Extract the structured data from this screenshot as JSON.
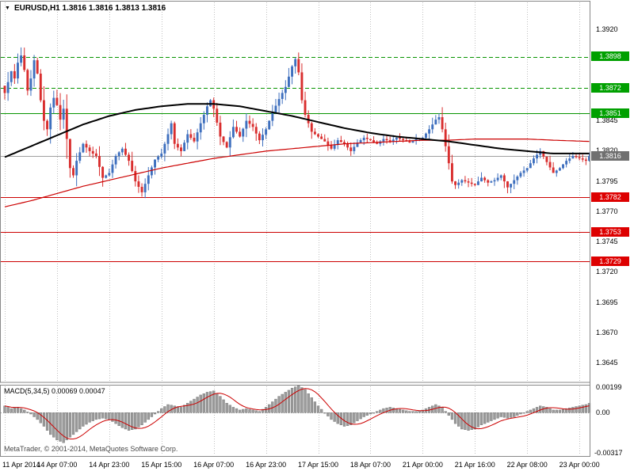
{
  "window": {
    "symbol_title": "EURUSD,H1  1.3816 1.3816 1.3813 1.3816"
  },
  "indicator": {
    "name": "MACD",
    "params": "5,34,5",
    "value_main": "0.00069",
    "value_signal": "0.00047",
    "label_full": "MACD(5,34,5) 0.00069 0.00047"
  },
  "watermark": "MetaTrader, © 2001-2014, MetaQuotes Software Corp.",
  "price_axis": {
    "ticks": [
      {
        "label": "1.3920",
        "price": 1.392
      },
      {
        "label": "1.3845",
        "price": 1.3845
      },
      {
        "label": "1.3820",
        "price": 1.382
      },
      {
        "label": "1.3795",
        "price": 1.3795
      },
      {
        "label": "1.3770",
        "price": 1.377
      },
      {
        "label": "1.3745",
        "price": 1.3745
      },
      {
        "label": "1.3720",
        "price": 1.372
      },
      {
        "label": "1.3695",
        "price": 1.3695
      },
      {
        "label": "1.3670",
        "price": 1.367
      },
      {
        "label": "1.3645",
        "price": 1.3645
      }
    ],
    "flags": [
      {
        "label": "1.3898",
        "price": 1.3898,
        "color": "#00a000"
      },
      {
        "label": "1.3872",
        "price": 1.3872,
        "color": "#00a000"
      },
      {
        "label": "1.3851",
        "price": 1.3851,
        "color": "#00a000"
      },
      {
        "label": "1.3782",
        "price": 1.3782,
        "color": "#dd0000"
      },
      {
        "label": "1.3753",
        "price": 1.3753,
        "color": "#dd0000"
      },
      {
        "label": "1.3729",
        "price": 1.3729,
        "color": "#dd0000"
      }
    ],
    "current": {
      "label": "1.3816",
      "price": 1.3816,
      "color": "#707070"
    }
  },
  "time_axis": {
    "labels": [
      "11 Apr 2014",
      "14 Apr 07:00",
      "14 Apr 23:00",
      "15 Apr 15:00",
      "16 Apr 07:00",
      "16 Apr 23:00",
      "17 Apr 15:00",
      "18 Apr 07:00",
      "21 Apr 00:00",
      "21 Apr 16:00",
      "22 Apr 08:00",
      "23 Apr 00:00"
    ]
  },
  "chart_data": {
    "type": "candlestick+macd",
    "symbol": "EURUSD",
    "timeframe": "H1",
    "last_quote": {
      "open": 1.3816,
      "high": 1.3816,
      "low": 1.3813,
      "close": 1.3816
    },
    "bars_total": 180,
    "bars_per_time_label": 16,
    "price_ylim": [
      1.3629,
      1.3938
    ],
    "price_tick_step": 0.0025,
    "close_path_anchors": [
      [
        0,
        1.3868
      ],
      [
        2,
        1.3886
      ],
      [
        3,
        1.388
      ],
      [
        4,
        1.3893
      ],
      [
        5,
        1.3899
      ],
      [
        6,
        1.3887
      ],
      [
        7,
        1.387
      ],
      [
        8,
        1.388
      ],
      [
        9,
        1.3895
      ],
      [
        10,
        1.3884
      ],
      [
        11,
        1.3862
      ],
      [
        12,
        1.3845
      ],
      [
        13,
        1.3838
      ],
      [
        14,
        1.3856
      ],
      [
        15,
        1.3864
      ],
      [
        16,
        1.3858
      ],
      [
        17,
        1.3846
      ],
      [
        18,
        1.3855
      ],
      [
        19,
        1.383
      ],
      [
        20,
        1.3806
      ],
      [
        21,
        1.38
      ],
      [
        22,
        1.3812
      ],
      [
        24,
        1.3826
      ],
      [
        26,
        1.382
      ],
      [
        28,
        1.3816
      ],
      [
        30,
        1.3798
      ],
      [
        32,
        1.3802
      ],
      [
        34,
        1.3816
      ],
      [
        36,
        1.3822
      ],
      [
        38,
        1.3812
      ],
      [
        40,
        1.3795
      ],
      [
        42,
        1.3786
      ],
      [
        44,
        1.38
      ],
      [
        46,
        1.3813
      ],
      [
        48,
        1.3818
      ],
      [
        50,
        1.3834
      ],
      [
        51,
        1.3843
      ],
      [
        52,
        1.3826
      ],
      [
        54,
        1.382
      ],
      [
        56,
        1.3834
      ],
      [
        58,
        1.3828
      ],
      [
        60,
        1.3843
      ],
      [
        62,
        1.3857
      ],
      [
        63,
        1.3862
      ],
      [
        64,
        1.3855
      ],
      [
        66,
        1.3832
      ],
      [
        68,
        1.3823
      ],
      [
        70,
        1.384
      ],
      [
        72,
        1.3832
      ],
      [
        74,
        1.3845
      ],
      [
        76,
        1.384
      ],
      [
        78,
        1.3829
      ],
      [
        80,
        1.3838
      ],
      [
        82,
        1.3852
      ],
      [
        84,
        1.3863
      ],
      [
        86,
        1.3873
      ],
      [
        88,
        1.389
      ],
      [
        89,
        1.3896
      ],
      [
        90,
        1.3885
      ],
      [
        91,
        1.3862
      ],
      [
        92,
        1.385
      ],
      [
        94,
        1.3836
      ],
      [
        96,
        1.3832
      ],
      [
        98,
        1.3828
      ],
      [
        100,
        1.3822
      ],
      [
        102,
        1.3829
      ],
      [
        104,
        1.3826
      ],
      [
        106,
        1.382
      ],
      [
        108,
        1.3827
      ],
      [
        110,
        1.3831
      ],
      [
        112,
        1.3829
      ],
      [
        114,
        1.3826
      ],
      [
        116,
        1.383
      ],
      [
        118,
        1.3828
      ],
      [
        120,
        1.3831
      ],
      [
        122,
        1.3829
      ],
      [
        124,
        1.3827
      ],
      [
        126,
        1.383
      ],
      [
        128,
        1.3831
      ],
      [
        130,
        1.3838
      ],
      [
        132,
        1.3846
      ],
      [
        133,
        1.3848
      ],
      [
        134,
        1.3838
      ],
      [
        136,
        1.381
      ],
      [
        137,
        1.3795
      ],
      [
        138,
        1.3792
      ],
      [
        140,
        1.3796
      ],
      [
        142,
        1.3794
      ],
      [
        144,
        1.3792
      ],
      [
        146,
        1.3798
      ],
      [
        148,
        1.3794
      ],
      [
        150,
        1.3796
      ],
      [
        152,
        1.38
      ],
      [
        154,
        1.379
      ],
      [
        156,
        1.3796
      ],
      [
        158,
        1.3802
      ],
      [
        160,
        1.3806
      ],
      [
        162,
        1.3814
      ],
      [
        164,
        1.382
      ],
      [
        166,
        1.3811
      ],
      [
        168,
        1.3802
      ],
      [
        170,
        1.3806
      ],
      [
        172,
        1.3812
      ],
      [
        174,
        1.3816
      ],
      [
        176,
        1.3814
      ],
      [
        178,
        1.3812
      ],
      [
        179,
        1.3816
      ]
    ],
    "sma_slow_black_anchors": [
      [
        0,
        1.3815
      ],
      [
        8,
        1.3824
      ],
      [
        16,
        1.3833
      ],
      [
        24,
        1.3842
      ],
      [
        32,
        1.3849
      ],
      [
        40,
        1.3854
      ],
      [
        48,
        1.3857
      ],
      [
        56,
        1.3859
      ],
      [
        64,
        1.3859
      ],
      [
        72,
        1.3857
      ],
      [
        80,
        1.3853
      ],
      [
        88,
        1.3849
      ],
      [
        96,
        1.3844
      ],
      [
        104,
        1.3839
      ],
      [
        112,
        1.3835
      ],
      [
        120,
        1.3832
      ],
      [
        128,
        1.383
      ],
      [
        136,
        1.3828
      ],
      [
        144,
        1.3825
      ],
      [
        152,
        1.3822
      ],
      [
        160,
        1.382
      ],
      [
        168,
        1.3818
      ],
      [
        179,
        1.3818
      ]
    ],
    "sma_fast_red_anchors": [
      [
        0,
        1.3774
      ],
      [
        8,
        1.3779
      ],
      [
        16,
        1.3785
      ],
      [
        24,
        1.3791
      ],
      [
        32,
        1.3796
      ],
      [
        40,
        1.3801
      ],
      [
        48,
        1.3806
      ],
      [
        56,
        1.381
      ],
      [
        64,
        1.3814
      ],
      [
        72,
        1.3817
      ],
      [
        80,
        1.382
      ],
      [
        88,
        1.3822
      ],
      [
        96,
        1.3824
      ],
      [
        104,
        1.3826
      ],
      [
        112,
        1.3827
      ],
      [
        120,
        1.3828
      ],
      [
        128,
        1.3829
      ],
      [
        136,
        1.3829
      ],
      [
        144,
        1.383
      ],
      [
        152,
        1.383
      ],
      [
        160,
        1.383
      ],
      [
        168,
        1.3829
      ],
      [
        179,
        1.3828
      ]
    ],
    "horizontal_levels": [
      {
        "price": 1.3898,
        "style": "dashed",
        "color": "#089400",
        "role": "resistance"
      },
      {
        "price": 1.3872,
        "style": "dashed",
        "color": "#089400",
        "role": "resistance"
      },
      {
        "price": 1.3851,
        "style": "solid",
        "color": "#089400",
        "role": "resistance"
      },
      {
        "price": 1.3816,
        "style": "solid",
        "color": "#a0a0a0",
        "role": "current-price"
      },
      {
        "price": 1.3782,
        "style": "solid",
        "color": "#cc0000",
        "role": "support"
      },
      {
        "price": 1.3753,
        "style": "solid",
        "color": "#cc0000",
        "role": "support"
      },
      {
        "price": 1.3729,
        "style": "solid",
        "color": "#cc0000",
        "role": "support"
      }
    ],
    "macd": {
      "name": "MACD",
      "params": [
        5,
        34,
        5
      ],
      "current_main": 0.00069,
      "current_signal": 0.00047,
      "ylim": [
        -0.00317,
        0.00199
      ],
      "axis_labels": [
        "0.00199",
        "0.00",
        "-0.00317"
      ],
      "main_anchors": [
        [
          0,
          0.0005
        ],
        [
          2,
          0.0003
        ],
        [
          4,
          0.0004
        ],
        [
          6,
          0.0002
        ],
        [
          8,
          -0.0001
        ],
        [
          10,
          -0.0005
        ],
        [
          12,
          -0.001
        ],
        [
          14,
          -0.0016
        ],
        [
          16,
          -0.002
        ],
        [
          18,
          -0.0022
        ],
        [
          20,
          -0.0018
        ],
        [
          22,
          -0.0014
        ],
        [
          24,
          -0.001
        ],
        [
          26,
          -0.0007
        ],
        [
          28,
          -0.0005
        ],
        [
          30,
          -0.0004
        ],
        [
          32,
          -0.0005
        ],
        [
          34,
          -0.0008
        ],
        [
          36,
          -0.0011
        ],
        [
          38,
          -0.0013
        ],
        [
          40,
          -0.0012
        ],
        [
          42,
          -0.0009
        ],
        [
          44,
          -0.0005
        ],
        [
          46,
          -0.0001
        ],
        [
          48,
          0.0003
        ],
        [
          50,
          0.0006
        ],
        [
          52,
          0.0005
        ],
        [
          54,
          0.0004
        ],
        [
          56,
          0.0007
        ],
        [
          58,
          0.001
        ],
        [
          60,
          0.0013
        ],
        [
          62,
          0.0015
        ],
        [
          64,
          0.0016
        ],
        [
          66,
          0.0012
        ],
        [
          68,
          0.0007
        ],
        [
          70,
          0.0004
        ],
        [
          72,
          0.0002
        ],
        [
          74,
          0.0003
        ],
        [
          76,
          0.0002
        ],
        [
          78,
          0.0001
        ],
        [
          80,
          0.0004
        ],
        [
          82,
          0.0008
        ],
        [
          84,
          0.0012
        ],
        [
          86,
          0.0015
        ],
        [
          88,
          0.0018
        ],
        [
          90,
          0.00199
        ],
        [
          92,
          0.0017
        ],
        [
          94,
          0.0011
        ],
        [
          96,
          0.0005
        ],
        [
          98,
          0
        ],
        [
          100,
          -0.0005
        ],
        [
          102,
          -0.0008
        ],
        [
          104,
          -0.001
        ],
        [
          106,
          -0.0009
        ],
        [
          108,
          -0.0006
        ],
        [
          110,
          -0.0003
        ],
        [
          112,
          -0.0001
        ],
        [
          114,
          0.0001
        ],
        [
          116,
          0.0003
        ],
        [
          118,
          0.0004
        ],
        [
          120,
          0.0003
        ],
        [
          122,
          0.0002
        ],
        [
          124,
          0.0001
        ],
        [
          126,
          0.0001
        ],
        [
          128,
          0.0002
        ],
        [
          130,
          0.0004
        ],
        [
          132,
          0.0006
        ],
        [
          134,
          0.0004
        ],
        [
          136,
          -0.0002
        ],
        [
          138,
          -0.0008
        ],
        [
          140,
          -0.0012
        ],
        [
          142,
          -0.0013
        ],
        [
          144,
          -0.0012
        ],
        [
          146,
          -0.0009
        ],
        [
          148,
          -0.0007
        ],
        [
          150,
          -0.0005
        ],
        [
          152,
          -0.0003
        ],
        [
          154,
          -0.0004
        ],
        [
          156,
          -0.0003
        ],
        [
          158,
          -0.0001
        ],
        [
          160,
          0.0001
        ],
        [
          162,
          0.0003
        ],
        [
          164,
          0.0005
        ],
        [
          166,
          0.0004
        ],
        [
          168,
          0.0002
        ],
        [
          170,
          0.0002
        ],
        [
          172,
          0.0003
        ],
        [
          174,
          0.0004
        ],
        [
          176,
          0.0005
        ],
        [
          178,
          0.0006
        ],
        [
          179,
          0.00069
        ]
      ]
    }
  },
  "colors": {
    "bull": "#3e6fbe",
    "bear": "#d92e2e",
    "ma_slow": "#000000",
    "ma_fast": "#cc0000",
    "grid": "#c0c0c0",
    "hist_fill": "#9b9b9b",
    "hist_stroke": "#6f6f6f",
    "signal": "#cc0000",
    "frame": "#888888"
  }
}
